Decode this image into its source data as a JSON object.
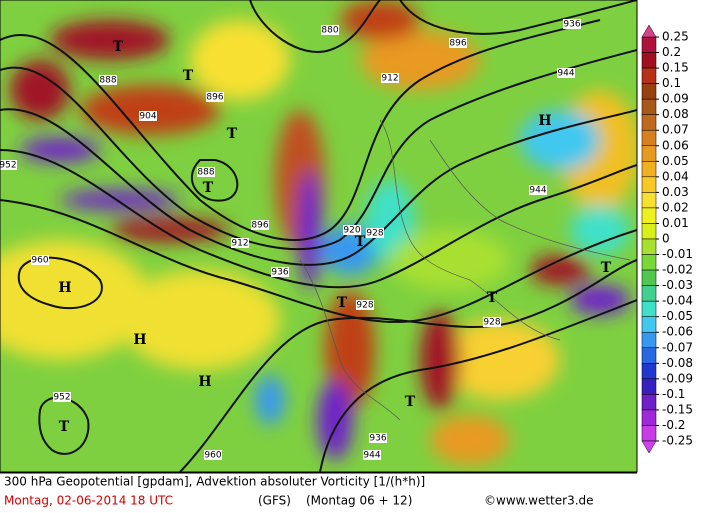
{
  "map": {
    "labels": [
      "T",
      "T",
      "T",
      "T",
      "T",
      "T",
      "T",
      "T",
      "T",
      "T",
      "H",
      "H",
      "H",
      "H",
      "912",
      "912",
      "880",
      "888",
      "888",
      "896",
      "896",
      "896",
      "904",
      "920",
      "928",
      "936",
      "928",
      "928",
      "936",
      "944",
      "944",
      "944",
      "952",
      "952",
      "960",
      "960",
      "936"
    ]
  },
  "colorbar": {
    "levels": [
      0.25,
      0.2,
      0.15,
      0.1,
      0.09,
      0.08,
      0.07,
      0.06,
      0.05,
      0.04,
      0.03,
      0.02,
      0.01,
      0,
      -0.01,
      -0.02,
      -0.03,
      -0.04,
      -0.05,
      -0.06,
      -0.07,
      -0.08,
      -0.09,
      -0.1,
      -0.15,
      -0.2,
      -0.25
    ],
    "colors": [
      "#b0103c",
      "#a01020",
      "#b83018",
      "#984010",
      "#a85818",
      "#c06820",
      "#d88020",
      "#e89a20",
      "#f0b020",
      "#f8c828",
      "#f8e030",
      "#f0f020",
      "#d8f018",
      "#a8e030",
      "#78d838",
      "#50c850",
      "#40d090",
      "#40e0c8",
      "#40c8f0",
      "#3898f0",
      "#2868e0",
      "#2038d0",
      "#3820c0",
      "#7020c8",
      "#a028d8",
      "#c83ce8"
    ]
  },
  "footer": {
    "title": "300 hPa Geopotential [gpdam], Advektion absoluter Vorticity [1/(h*h)]",
    "date": "Montag, 02-06-2014  18 UTC",
    "model": "(GFS)",
    "run": "(Montag 06 + 12)",
    "copyright": "©www.wetter3.de"
  }
}
